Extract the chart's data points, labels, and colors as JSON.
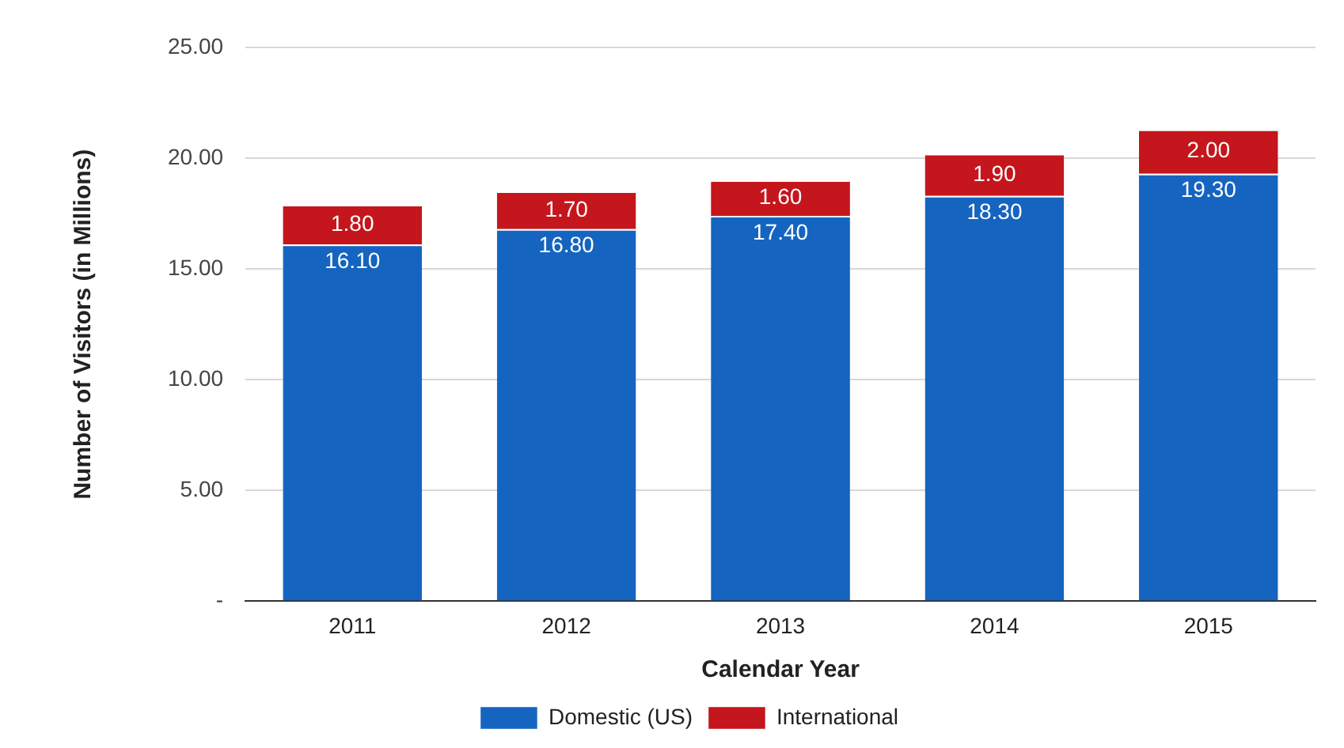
{
  "chart_data": {
    "type": "bar",
    "stacked": true,
    "xlabel": "Calendar Year",
    "ylabel": "Number of Visitors (in Millions)",
    "categories": [
      "2011",
      "2012",
      "2013",
      "2014",
      "2015"
    ],
    "series": [
      {
        "name": "Domestic (US)",
        "color": "#1565c0",
        "values": [
          16.1,
          16.8,
          17.4,
          18.3,
          19.3
        ],
        "value_labels": [
          "16.10",
          "16.80",
          "17.40",
          "18.30",
          "19.30"
        ]
      },
      {
        "name": "International",
        "color": "#c4161c",
        "values": [
          1.8,
          1.7,
          1.6,
          1.9,
          2.0
        ],
        "value_labels": [
          "1.80",
          "1.70",
          "1.60",
          "1.90",
          "2.00"
        ]
      }
    ],
    "ylim": [
      0,
      25
    ],
    "yticks": [
      {
        "value": 0,
        "label": "-"
      },
      {
        "value": 5,
        "label": "5.00"
      },
      {
        "value": 10,
        "label": "10.00"
      },
      {
        "value": 15,
        "label": "15.00"
      },
      {
        "value": 20,
        "label": "20.00"
      },
      {
        "value": 25,
        "label": "25.00"
      }
    ],
    "grid": "y",
    "legend": "bottom"
  }
}
